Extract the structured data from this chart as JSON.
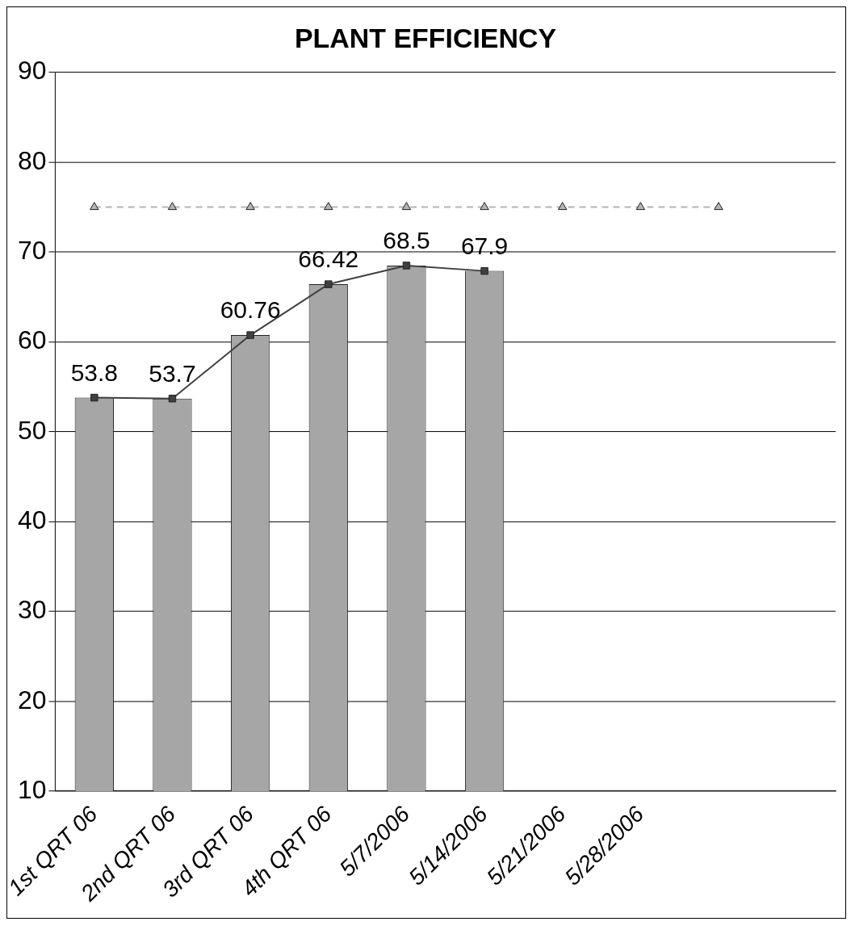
{
  "chart_data": {
    "type": "bar",
    "title": "PLANT EFFICIENCY",
    "categories": [
      "1st QRT 06",
      "2nd QRT 06",
      "3rd QRT 06",
      "4th QRT 06",
      "5/7/2006",
      "5/14/2006",
      "5/21/2006",
      "5/28/2006",
      null,
      null
    ],
    "series": [
      {
        "color": "#a6a6a6",
        "values": [
          53.8,
          53.7,
          60.76,
          66.42,
          68.5,
          67.9,
          null,
          null,
          null,
          null
        ],
        "value_labels": [
          "53.8",
          "53.7",
          "60.76",
          "66.42",
          "68.5",
          "67.9",
          null,
          null,
          null,
          null
        ]
      },
      {
        "type": "line",
        "color": "#404040",
        "marker": "square",
        "line_style": "solid",
        "values": [
          53.8,
          53.7,
          60.76,
          66.42,
          68.5,
          67.9,
          null,
          null,
          null,
          null
        ]
      },
      {
        "type": "line",
        "color": "#b4b4b4",
        "marker": "triangle",
        "line_style": "dashed",
        "values": [
          75,
          75,
          75,
          75,
          75,
          75,
          75,
          75,
          75,
          null
        ]
      }
    ],
    "ylim": [
      10,
      90
    ],
    "yticks": [
      10,
      20,
      30,
      40,
      50,
      60,
      70,
      80,
      90
    ],
    "grid": "y",
    "legend": false
  }
}
